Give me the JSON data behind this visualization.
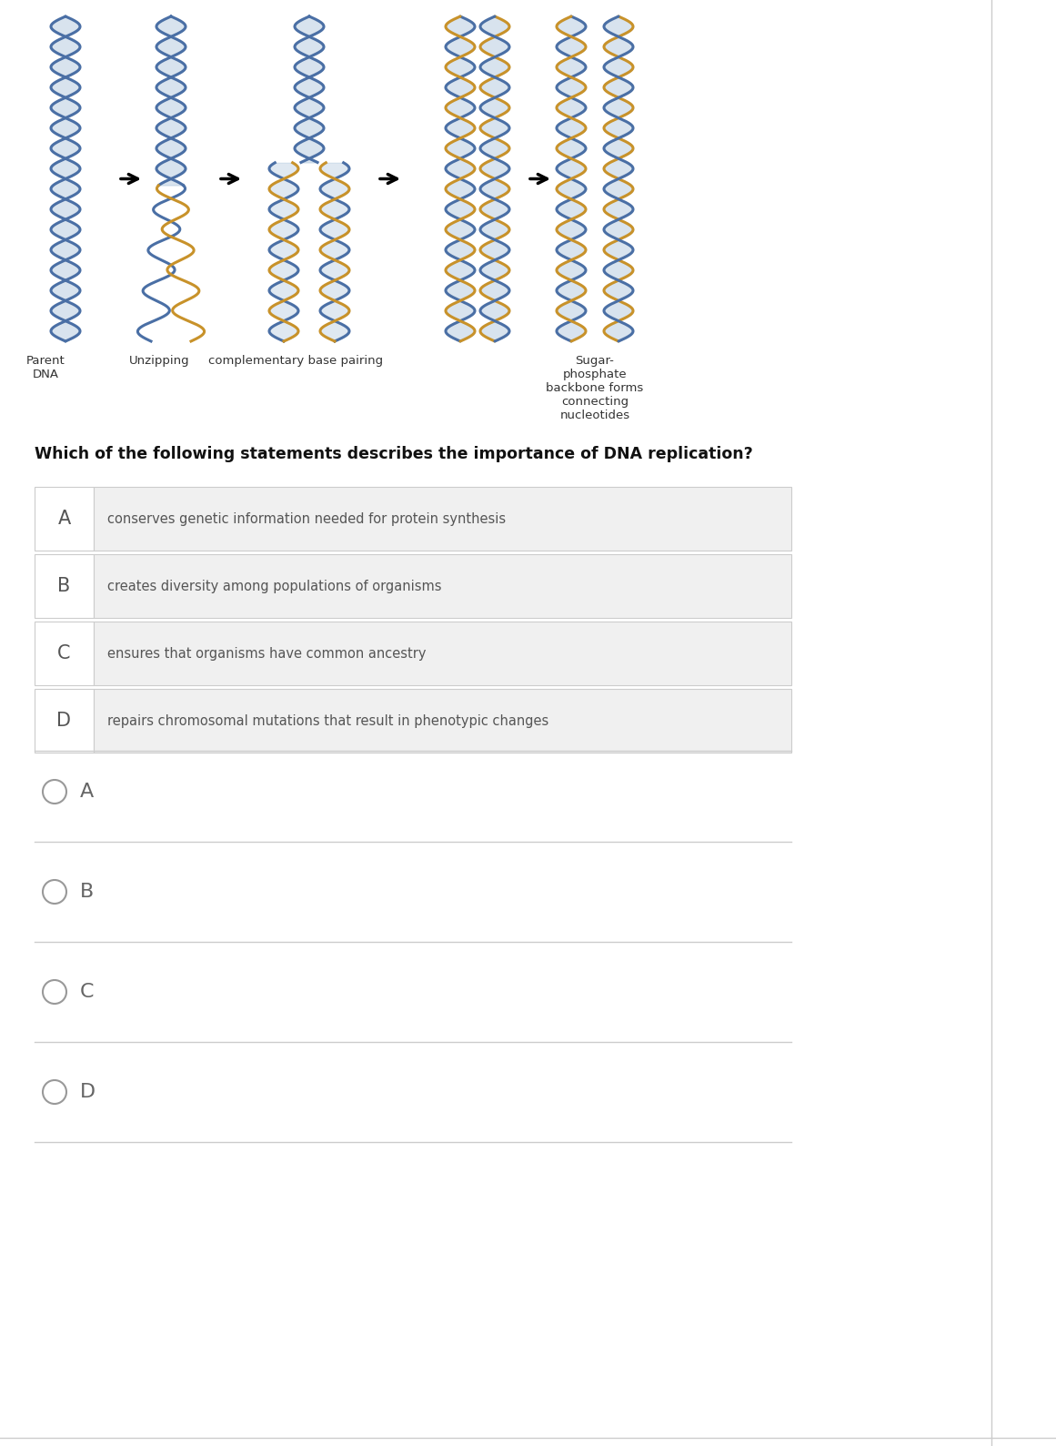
{
  "bg_color": "#ffffff",
  "question": "Which of the following statements describes the importance of DNA replication?",
  "question_fontsize": 12.5,
  "options": [
    {
      "label": "A",
      "text": "conserves genetic information needed for protein synthesis"
    },
    {
      "label": "B",
      "text": "creates diversity among populations of organisms"
    },
    {
      "label": "C",
      "text": "ensures that organisms have common ancestry"
    },
    {
      "label": "D",
      "text": "repairs chromosomal mutations that result in phenotypic changes"
    }
  ],
  "option_bg": "#f0f0f0",
  "option_label_color": "#555555",
  "option_text_color": "#555555",
  "option_fontsize": 10.5,
  "label_fontsize": 15,
  "caption_labels": [
    "Parent\nDNA",
    "Unzipping",
    "complementary base pairing",
    "Sugar-\nphosphate\nbackbone forms\nconnecting\nnucleotides"
  ],
  "caption_fontsize": 9.5,
  "caption_color": "#333333",
  "radio_labels": [
    "A",
    "B",
    "C",
    "D"
  ],
  "radio_color": "#999999",
  "radio_text_color": "#666666",
  "divider_color": "#cccccc",
  "blue": "#4a6fa5",
  "orange": "#c8922a",
  "rung_color": "#b8cce0"
}
